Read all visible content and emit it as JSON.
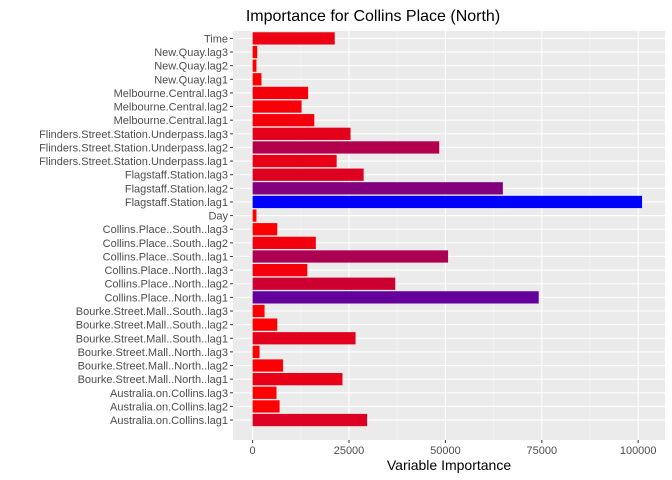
{
  "chart_data": {
    "type": "bar",
    "orientation": "horizontal",
    "title": "Importance for Collins Place (North)",
    "xlabel": "Variable Importance",
    "ylabel": "",
    "xlim": [
      0,
      105000
    ],
    "xticks": [
      0,
      25000,
      50000,
      75000,
      100000
    ],
    "xtick_labels": [
      "0",
      "25000",
      "50000",
      "75000",
      "100000"
    ],
    "grid": true,
    "color_scale": {
      "low": "#ff0000",
      "high": "#0000ff"
    },
    "categories": [
      "Time",
      "New.Quay.lag3",
      "New.Quay.lag2",
      "New.Quay.lag1",
      "Melbourne.Central.lag3",
      "Melbourne.Central.lag2",
      "Melbourne.Central.lag1",
      "Flinders.Street.Station.Underpass.lag3",
      "Flinders.Street.Station.Underpass.lag2",
      "Flinders.Street.Station.Underpass.lag1",
      "Flagstaff.Station.lag3",
      "Flagstaff.Station.lag2",
      "Flagstaff.Station.lag1",
      "Day",
      "Collins.Place..South..lag3",
      "Collins.Place..South..lag2",
      "Collins.Place..South..lag1",
      "Collins.Place..North..lag3",
      "Collins.Place..North..lag2",
      "Collins.Place..North..lag1",
      "Bourke.Street.Mall..South..lag3",
      "Bourke.Street.Mall..South..lag2",
      "Bourke.Street.Mall..South..lag1",
      "Bourke.Street.Mall..North..lag3",
      "Bourke.Street.Mall..North..lag2",
      "Bourke.Street.Mall..North..lag1",
      "Australia.on.Collins.lag3",
      "Australia.on.Collins.lag2",
      "Australia.on.Collins.lag1"
    ],
    "values": [
      21300,
      1200,
      1000,
      2300,
      14400,
      12700,
      16000,
      25400,
      48400,
      21800,
      28800,
      64900,
      101000,
      1000,
      6400,
      16400,
      50700,
      14200,
      37000,
      74200,
      3100,
      6400,
      26700,
      1800,
      7900,
      23300,
      6200,
      7000,
      29700
    ]
  }
}
